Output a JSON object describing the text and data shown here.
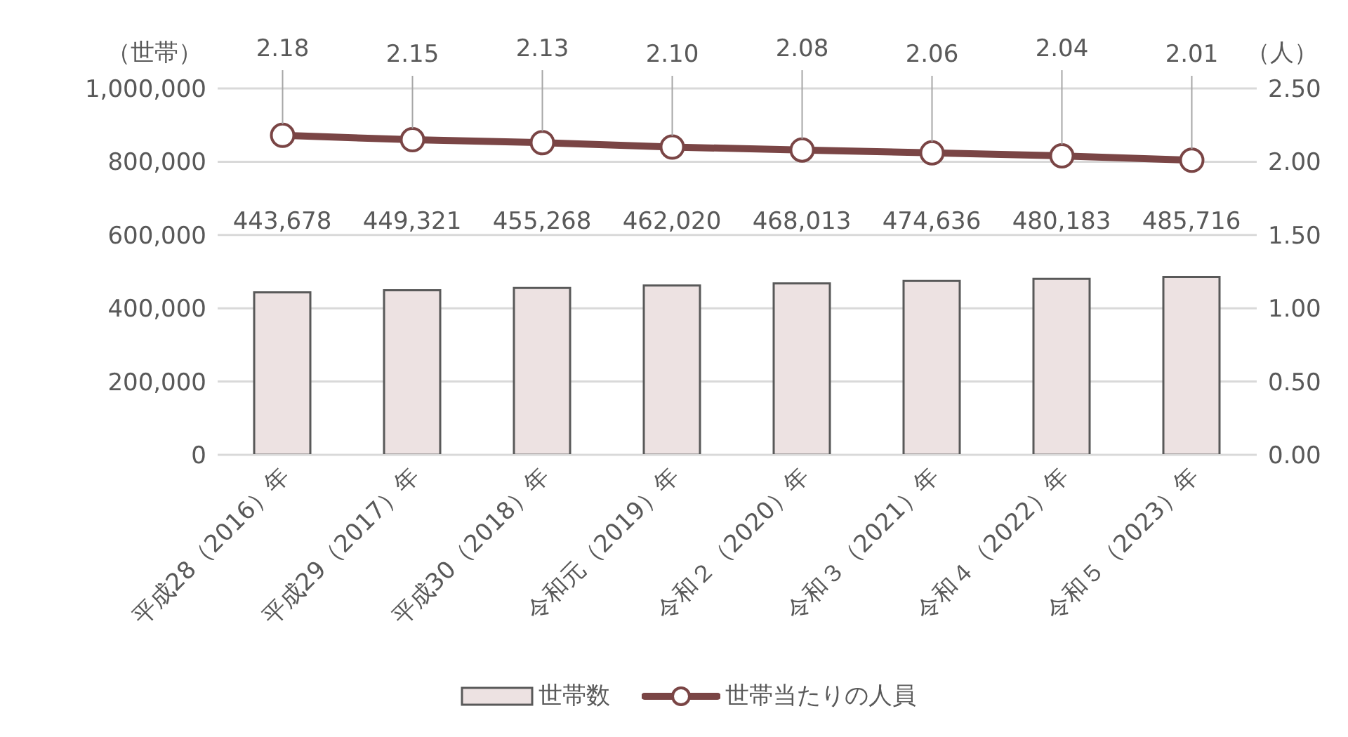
{
  "chart_data": {
    "type": "bar",
    "ylabel": "（世帯）",
    "y2label": "（人）",
    "categories": [
      "平成28（2016）年",
      "平成29（2017）年",
      "平成30（2018）年",
      "令和元（2019）年",
      "令和２（2020）年",
      "令和３（2021）年",
      "令和４（2022）年",
      "令和５（2023）年"
    ],
    "series": [
      {
        "name": "世帯数",
        "color": "#ede2e2",
        "values": [
          443678,
          449321,
          455268,
          462020,
          468013,
          474636,
          480183,
          485716
        ],
        "value_labels": [
          "443,678",
          "449,321",
          "455,268",
          "462,020",
          "468,013",
          "474,636",
          "480,183",
          "485,716"
        ]
      },
      {
        "name": "世帯当たりの人員",
        "type": "line",
        "axis": "y2",
        "color": "#7a4545",
        "marker": "circle",
        "values": [
          2.18,
          2.15,
          2.13,
          2.1,
          2.08,
          2.06,
          2.04,
          2.01
        ],
        "value_labels": [
          "2.18",
          "2.15",
          "2.13",
          "2.10",
          "2.08",
          "2.06",
          "2.04",
          "2.01"
        ]
      }
    ],
    "ylim": [
      0,
      1000000
    ],
    "yticks": [
      {
        "value": 0,
        "label": "0"
      },
      {
        "value": 200000,
        "label": "200,000"
      },
      {
        "value": 400000,
        "label": "400,000"
      },
      {
        "value": 600000,
        "label": "600,000"
      },
      {
        "value": 800000,
        "label": "800,000"
      },
      {
        "value": 1000000,
        "label": "1,000,000"
      }
    ],
    "y2lim": [
      0,
      2.5
    ],
    "y2ticks": [
      {
        "value": 0,
        "label": "0.00"
      },
      {
        "value": 0.5,
        "label": "0.50"
      },
      {
        "value": 1,
        "label": "1.00"
      },
      {
        "value": 1.5,
        "label": "1.50"
      },
      {
        "value": 2,
        "label": "2.00"
      },
      {
        "value": 2.5,
        "label": "2.50"
      }
    ],
    "grid": "y",
    "legend": "bottom"
  }
}
